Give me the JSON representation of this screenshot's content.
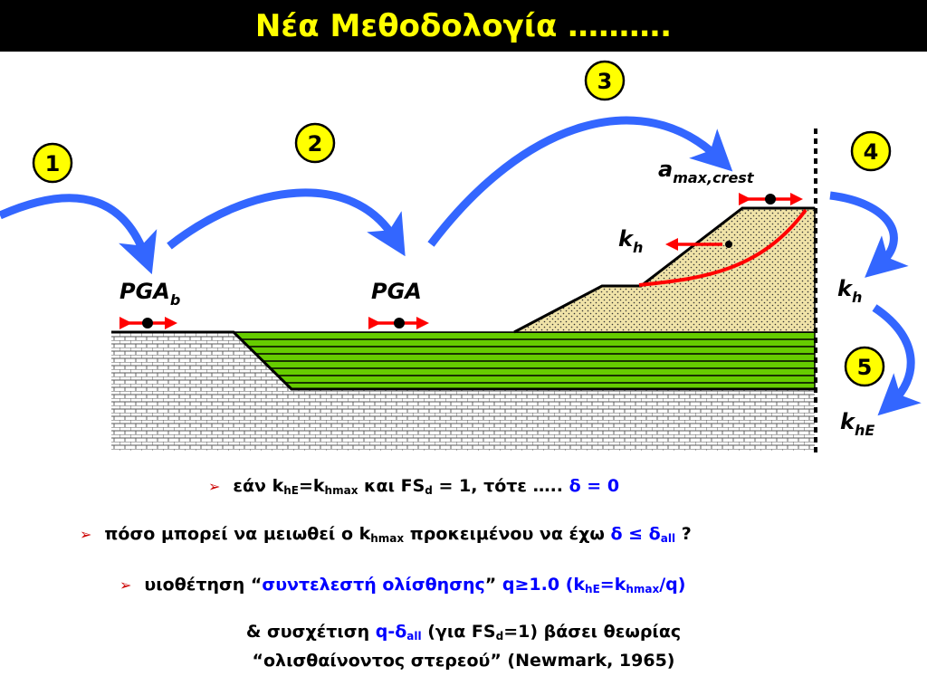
{
  "title": "Νέα Μεθοδολογία ……….",
  "colors": {
    "arrow_blue": "#3366FF",
    "shear_red": "#FF0000",
    "layer_green": "#66CC00",
    "fill_sand": "#F0E3A8",
    "badge_yellow": "#FFFF00",
    "title_bg": "#000000",
    "title_text": "#FFFF00",
    "highlight_text": "#0000FF",
    "bullet": "#CC0000"
  },
  "diagram": {
    "steps": [
      "1",
      "2",
      "3",
      "4",
      "5"
    ],
    "labels": {
      "pga_b": {
        "main": "PGA",
        "sub": "b"
      },
      "pga": "PGA",
      "amax_crest": {
        "main": "a",
        "sub": "max,crest"
      },
      "kh_slope": {
        "main": "k",
        "sub": "h"
      },
      "kh_side": {
        "main": "k",
        "sub": "h"
      },
      "khe": {
        "main": "k",
        "sub": "hE"
      }
    }
  },
  "bullets": [
    {
      "marker": "➢",
      "parts": [
        {
          "t": "εάν k"
        },
        {
          "t": "hE",
          "sub": true
        },
        {
          "t": "=k"
        },
        {
          "t": "hmax",
          "sub": true
        },
        {
          "t": " και FS"
        },
        {
          "t": "d",
          "sub": true
        },
        {
          "t": " = 1, τότε ….. "
        },
        {
          "t": "δ = 0",
          "hl": true
        }
      ]
    },
    {
      "marker": "➢",
      "parts": [
        {
          "t": "πόσο μπορεί να μειωθεί ο k"
        },
        {
          "t": "hmax",
          "sub": true
        },
        {
          "t": " προκειμένου να έχω "
        },
        {
          "t": "δ ≤ δ",
          "hl": true
        },
        {
          "t": "all",
          "sub": true,
          "hl": true
        },
        {
          "t": " ?"
        }
      ]
    },
    {
      "marker": "➢",
      "parts": [
        {
          "t": "υιοθέτηση “"
        },
        {
          "t": "συντελεστή ολίσθησης",
          "hl": true
        },
        {
          "t": "” "
        },
        {
          "t": "q≥1.0 (k",
          "hl": true
        },
        {
          "t": "hE",
          "sub": true,
          "hl": true
        },
        {
          "t": "=k",
          "hl": true
        },
        {
          "t": "hmax",
          "sub": true,
          "hl": true
        },
        {
          "t": "/q)",
          "hl": true
        }
      ]
    }
  ],
  "conclusion": {
    "line1": [
      {
        "t": "& συσχέτιση "
      },
      {
        "t": "q-δ",
        "hl": true
      },
      {
        "t": "all",
        "sub": true,
        "hl": true
      },
      {
        "t": " (για FS"
      },
      {
        "t": "d",
        "sub": true
      },
      {
        "t": "=1) βάσει θεωρίας"
      }
    ],
    "line2": [
      {
        "t": "“ολισθαίνοντος στερεού” (Newmark, 1965)"
      }
    ]
  }
}
